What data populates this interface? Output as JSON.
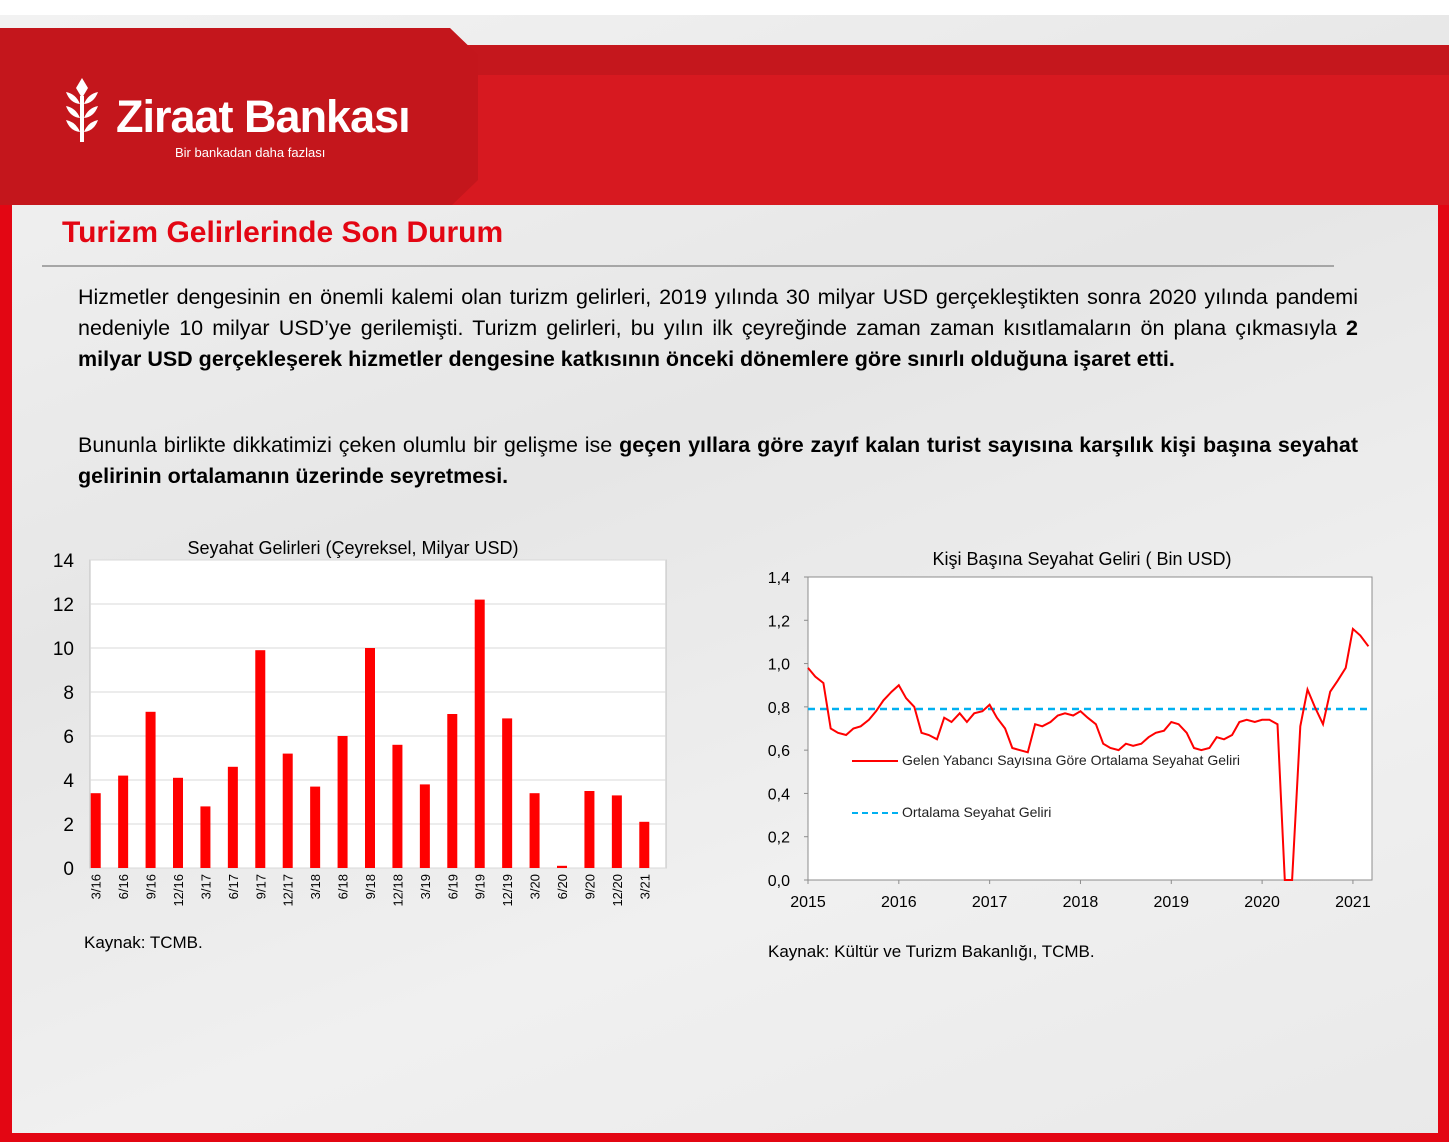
{
  "header": {
    "brand": "Ziraat Bankası",
    "tagline": "Bir bankadan daha fazlası"
  },
  "title": "Turizm Gelirlerinde Son Durum",
  "paragraphs": [
    [
      {
        "text": "Hizmetler dengesinin en önemli kalemi olan turizm gelirleri, 2019 yılında 30 milyar USD gerçekleştikten sonra 2020 yılında pandemi nedeniyle 10 milyar USD’ye gerilemişti. Turizm gelirleri, bu yılın ilk çeyreğinde zaman zaman kısıtlamaların ön plana çıkmasıyla",
        "bold": false
      },
      {
        "text": "2 milyar USD gerçekleşerek hizmetler dengesine katkısının önceki dönemlere göre sınırlı olduğuna işaret etti.",
        "bold": true
      }
    ],
    [
      {
        "text": "Bununla birlikte dikkatimizi çeken olumlu bir gelişme ise",
        "bold": false
      },
      {
        "text": "geçen yıllara göre zayıf kalan turist sayısına karşılık kişi başına seyahat gelirinin ortalamanın üzerinde seyretmesi.",
        "bold": true
      }
    ]
  ],
  "chart_data": [
    {
      "type": "bar",
      "title": "Seyahat Gelirleri (Çeyreksel, Milyar USD)",
      "categories": [
        "3/16",
        "6/16",
        "9/16",
        "12/16",
        "3/17",
        "6/17",
        "9/17",
        "12/17",
        "3/18",
        "6/18",
        "9/18",
        "12/18",
        "3/19",
        "6/19",
        "9/19",
        "12/19",
        "3/20",
        "6/20",
        "9/20",
        "12/20",
        "3/21"
      ],
      "values": [
        3.4,
        4.2,
        7.1,
        4.1,
        2.8,
        4.6,
        9.9,
        5.2,
        3.7,
        6.0,
        10.0,
        5.6,
        3.8,
        7.0,
        12.2,
        6.8,
        3.4,
        0.1,
        3.5,
        3.3,
        2.1
      ],
      "color": "#ff0000",
      "ylim": [
        0,
        14
      ],
      "yticks": [
        0,
        2,
        4,
        6,
        8,
        10,
        12,
        14
      ],
      "grid": true,
      "source": "Kaynak: TCMB."
    },
    {
      "type": "line",
      "title": "Kişi Başına Seyahat Geliri ( Bin USD)",
      "x": [
        2015,
        2015.08,
        2015.17,
        2015.25,
        2015.33,
        2015.42,
        2015.5,
        2015.58,
        2015.67,
        2015.75,
        2015.83,
        2015.92,
        2016,
        2016.08,
        2016.17,
        2016.25,
        2016.33,
        2016.42,
        2016.5,
        2016.58,
        2016.67,
        2016.75,
        2016.83,
        2016.92,
        2017,
        2017.08,
        2017.17,
        2017.25,
        2017.33,
        2017.42,
        2017.5,
        2017.58,
        2017.67,
        2017.75,
        2017.83,
        2017.92,
        2018,
        2018.08,
        2018.17,
        2018.25,
        2018.33,
        2018.42,
        2018.5,
        2018.58,
        2018.67,
        2018.75,
        2018.83,
        2018.92,
        2019,
        2019.08,
        2019.17,
        2019.25,
        2019.33,
        2019.42,
        2019.5,
        2019.58,
        2019.67,
        2019.75,
        2019.83,
        2019.92,
        2020,
        2020.08,
        2020.17,
        2020.25,
        2020.33,
        2020.42,
        2020.5,
        2020.58,
        2020.67,
        2020.75,
        2020.83,
        2020.92,
        2021,
        2021.08,
        2021.17
      ],
      "series": [
        {
          "name": "Gelen Yabancı Sayısına Göre Ortalama Seyahat Geliri",
          "color": "#ff0000",
          "values": [
            0.98,
            0.94,
            0.91,
            0.7,
            0.68,
            0.67,
            0.7,
            0.71,
            0.74,
            0.78,
            0.83,
            0.87,
            0.9,
            0.84,
            0.8,
            0.68,
            0.67,
            0.65,
            0.75,
            0.73,
            0.77,
            0.73,
            0.77,
            0.78,
            0.81,
            0.75,
            0.7,
            0.61,
            0.6,
            0.59,
            0.72,
            0.71,
            0.73,
            0.76,
            0.77,
            0.76,
            0.78,
            0.75,
            0.72,
            0.63,
            0.61,
            0.6,
            0.63,
            0.62,
            0.63,
            0.66,
            0.68,
            0.69,
            0.73,
            0.72,
            0.68,
            0.61,
            0.6,
            0.61,
            0.66,
            0.65,
            0.67,
            0.73,
            0.74,
            0.73,
            0.74,
            0.74,
            0.72,
            0.0,
            0.0,
            0.71,
            0.88,
            0.8,
            0.72,
            0.87,
            0.92,
            0.98,
            1.16,
            1.13,
            1.08
          ]
        }
      ],
      "reference": {
        "name": "Ortalama Seyahat Geliri",
        "value": 0.79,
        "color": "#00b0f0",
        "dashed": true
      },
      "xlim": [
        2015,
        2021.21
      ],
      "xticks": [
        2015,
        2016,
        2017,
        2018,
        2019,
        2020,
        2021
      ],
      "ylim": [
        0,
        1.4
      ],
      "yticks": [
        {
          "value": 0,
          "label": "0,0"
        },
        {
          "value": 0.2,
          "label": "0,2"
        },
        {
          "value": 0.4,
          "label": "0,4"
        },
        {
          "value": 0.6,
          "label": "0,6"
        },
        {
          "value": 0.8,
          "label": "0,8"
        },
        {
          "value": 1.0,
          "label": "1,0"
        },
        {
          "value": 1.2,
          "label": "1,2"
        },
        {
          "value": 1.4,
          "label": "1,4"
        }
      ],
      "grid": false,
      "source": "Kaynak: Kültür ve Turizm Bakanlığı, TCMB."
    }
  ]
}
